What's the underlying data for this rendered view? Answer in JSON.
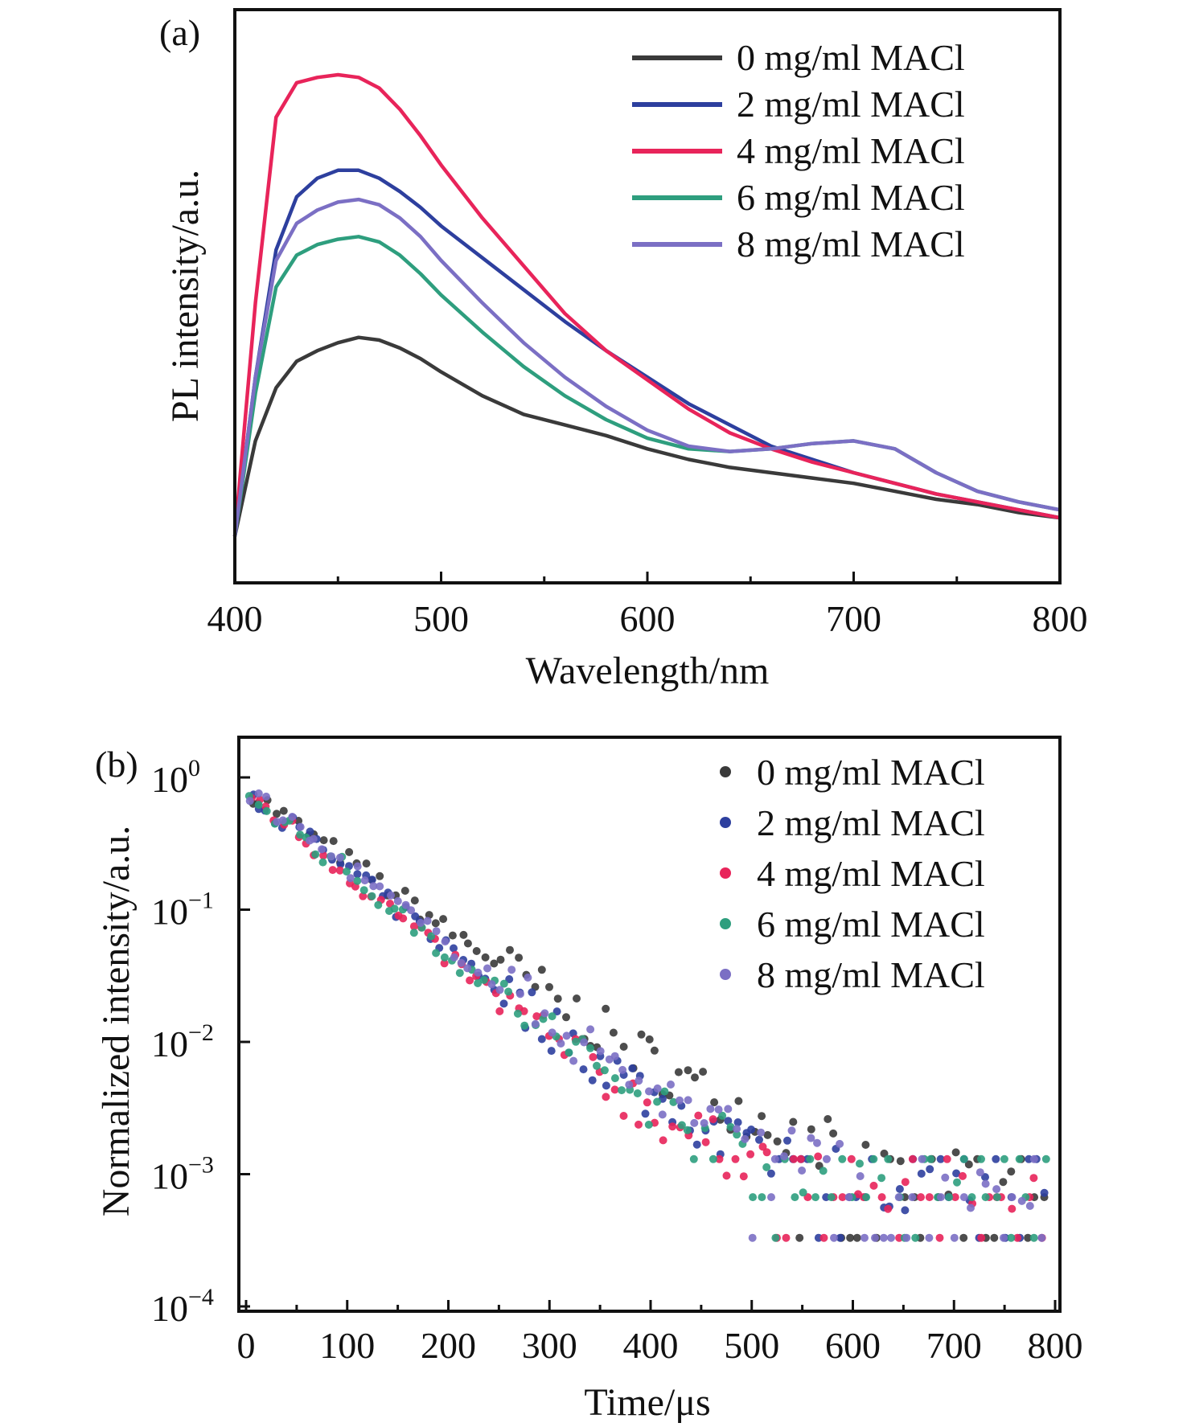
{
  "chart_data": [
    {
      "type": "line",
      "panel_label": "(a)",
      "xlabel": "Wavelength/nm",
      "ylabel": "PL intensity/a.u.",
      "xlim": [
        400,
        800
      ],
      "ylim": [
        0,
        1.0
      ],
      "x_ticks": [
        "400",
        "500",
        "600",
        "700",
        "800"
      ],
      "y_ticks_shown": false,
      "legend_position": "top-right",
      "series": [
        {
          "name": "0 mg/ml MACl",
          "color": "#3a3a3a",
          "x": [
            400,
            410,
            420,
            430,
            440,
            450,
            460,
            470,
            480,
            490,
            500,
            520,
            540,
            560,
            580,
            600,
            620,
            640,
            660,
            680,
            700,
            720,
            740,
            760,
            780,
            800
          ],
          "y": [
            0.08,
            0.26,
            0.36,
            0.41,
            0.43,
            0.445,
            0.455,
            0.45,
            0.435,
            0.415,
            0.39,
            0.345,
            0.31,
            0.29,
            0.27,
            0.245,
            0.225,
            0.21,
            0.2,
            0.19,
            0.18,
            0.165,
            0.15,
            0.14,
            0.125,
            0.115
          ]
        },
        {
          "name": "2 mg/ml MACl",
          "color": "#2d3f9e",
          "x": [
            400,
            410,
            420,
            430,
            440,
            450,
            460,
            470,
            480,
            490,
            500,
            520,
            540,
            560,
            580,
            600,
            620,
            640,
            660,
            680,
            700,
            720,
            740,
            760,
            780,
            800
          ],
          "y": [
            0.08,
            0.38,
            0.62,
            0.72,
            0.755,
            0.77,
            0.77,
            0.755,
            0.73,
            0.7,
            0.665,
            0.605,
            0.545,
            0.485,
            0.43,
            0.38,
            0.33,
            0.29,
            0.25,
            0.225,
            0.2,
            0.18,
            0.16,
            0.145,
            0.13,
            0.115
          ]
        },
        {
          "name": "4 mg/ml MACl",
          "color": "#e8245a",
          "x": [
            400,
            410,
            420,
            430,
            440,
            450,
            460,
            470,
            480,
            490,
            500,
            520,
            540,
            560,
            580,
            600,
            620,
            640,
            660,
            680,
            700,
            720,
            740,
            760,
            780,
            800
          ],
          "y": [
            0.08,
            0.52,
            0.87,
            0.935,
            0.945,
            0.95,
            0.945,
            0.925,
            0.885,
            0.835,
            0.78,
            0.68,
            0.59,
            0.5,
            0.43,
            0.375,
            0.32,
            0.275,
            0.245,
            0.22,
            0.2,
            0.18,
            0.16,
            0.145,
            0.13,
            0.115
          ]
        },
        {
          "name": "6 mg/ml MACl",
          "color": "#2e9e7e",
          "x": [
            400,
            410,
            420,
            430,
            440,
            450,
            460,
            470,
            480,
            490,
            500,
            520,
            540,
            560,
            580,
            600,
            620,
            640,
            660,
            680,
            700,
            720,
            740,
            760,
            780,
            800
          ],
          "y": [
            0.08,
            0.35,
            0.55,
            0.61,
            0.63,
            0.64,
            0.645,
            0.635,
            0.61,
            0.575,
            0.535,
            0.465,
            0.4,
            0.345,
            0.3,
            0.265,
            0.245,
            0.24,
            0.245,
            0.255,
            0.26,
            0.245,
            0.2,
            0.165,
            0.145,
            0.13
          ]
        },
        {
          "name": "8 mg/ml MACl",
          "color": "#7b6fc4",
          "x": [
            400,
            410,
            420,
            430,
            440,
            450,
            460,
            470,
            480,
            490,
            500,
            520,
            540,
            560,
            580,
            600,
            620,
            640,
            660,
            680,
            700,
            720,
            740,
            760,
            780,
            800
          ],
          "y": [
            0.08,
            0.38,
            0.6,
            0.67,
            0.695,
            0.71,
            0.715,
            0.705,
            0.68,
            0.645,
            0.6,
            0.52,
            0.445,
            0.38,
            0.325,
            0.28,
            0.25,
            0.24,
            0.245,
            0.255,
            0.26,
            0.245,
            0.2,
            0.165,
            0.145,
            0.13
          ]
        }
      ]
    },
    {
      "type": "scatter",
      "panel_label": "(b)",
      "xlabel": "Time/μs",
      "ylabel": "Normalized intensity/a.u.",
      "xlim": [
        0,
        800
      ],
      "ylim": [
        0.0001,
        1
      ],
      "yscale": "log",
      "x_ticks": [
        "0",
        "100",
        "200",
        "300",
        "400",
        "500",
        "600",
        "700",
        "800"
      ],
      "y_ticks": [
        {
          "base": "10",
          "exp": "0"
        },
        {
          "base": "10",
          "exp": "−1"
        },
        {
          "base": "10",
          "exp": "−2"
        },
        {
          "base": "10",
          "exp": "−3"
        },
        {
          "base": "10",
          "exp": "−4"
        }
      ],
      "legend_position": "top-right",
      "series": [
        {
          "name": "0 mg/ml MACl",
          "color": "#3a3a3a",
          "tau": 82,
          "tail": 0.0012
        },
        {
          "name": "2 mg/ml MACl",
          "color": "#2d3f9e",
          "tau": 72,
          "tail": 0.0009
        },
        {
          "name": "4 mg/ml MACl",
          "color": "#e8245a",
          "tau": 68,
          "tail": 0.0008
        },
        {
          "name": "6 mg/ml MACl",
          "color": "#2e9e7e",
          "tau": 70,
          "tail": 0.0009
        },
        {
          "name": "8 mg/ml MACl",
          "color": "#7b6fc4",
          "tau": 74,
          "tail": 0.001
        }
      ]
    }
  ]
}
